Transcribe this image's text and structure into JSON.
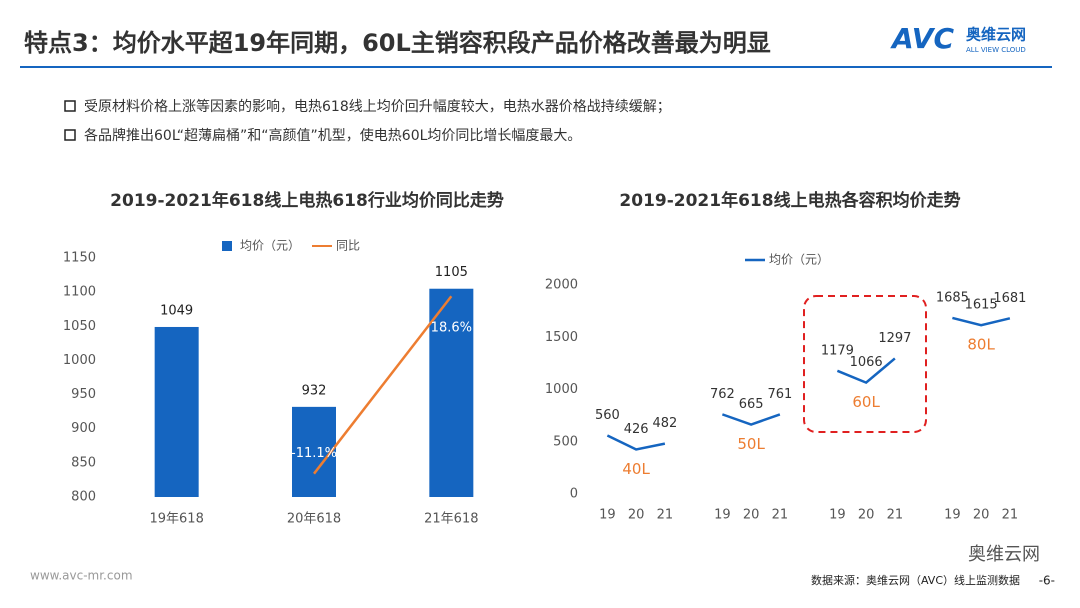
{
  "header": {
    "title": "特点3：均价水平超19年同期，60L主销容积段产品价格改善最为明显",
    "logo": {
      "mark": "AVC",
      "name": "奥维云网",
      "tagline": "ALL VIEW CLOUD"
    }
  },
  "bullets": [
    "受原材料价格上涨等因素的影响，电热618线上均价回升幅度较大，电热水器价格战持续缓解；",
    "各品牌推出60L“超薄扁桶”和“高颜值”机型，使电热60L均价同比增长幅度最大。"
  ],
  "chart_data": [
    {
      "type": "combo",
      "title": "2019-2021年618线上电热618行业均价同比走势",
      "categories": [
        "19年618",
        "20年618",
        "21年618"
      ],
      "series": [
        {
          "name": "均价（元）",
          "type": "bar",
          "color": "#1565c0",
          "values": [
            1049,
            932,
            1105
          ]
        },
        {
          "name": "同比",
          "type": "line",
          "axis": "y2",
          "color": "#ed7d31",
          "values": [
            null,
            -11.1,
            18.6
          ],
          "value_labels": [
            null,
            "-11.1%",
            "18.6%"
          ]
        }
      ],
      "ylim": [
        800,
        1150
      ],
      "yticks": [
        800,
        850,
        900,
        950,
        1000,
        1050,
        1100,
        1150
      ],
      "y2lim": [
        -15,
        25
      ],
      "grid": false,
      "legend": "top"
    },
    {
      "type": "line",
      "title": "2019-2021年618线上电热各容积均价走势",
      "categories": [
        "19",
        "20",
        "21",
        null,
        "19",
        "20",
        "21",
        null,
        "19",
        "20",
        "21",
        null,
        "19",
        "20",
        "21"
      ],
      "series": [
        {
          "name": "均价（元）",
          "color": "#1565c0",
          "values": [
            560,
            426,
            482,
            null,
            762,
            665,
            761,
            null,
            1179,
            1066,
            1297,
            null,
            1685,
            1615,
            1681
          ]
        }
      ],
      "group_labels": [
        "40L",
        "50L",
        "60L",
        "80L"
      ],
      "group_label_color": "#ed7d31",
      "ylim": [
        0,
        2000
      ],
      "yticks": [
        0,
        500,
        1000,
        1500,
        2000
      ],
      "grid": false,
      "legend": "top"
    }
  ],
  "footer": {
    "url": "www.avc-mr.com",
    "source": "数据来源：奥维云网（AVC）线上监测数据",
    "page": "-6-",
    "wechat": "奥维云网"
  }
}
